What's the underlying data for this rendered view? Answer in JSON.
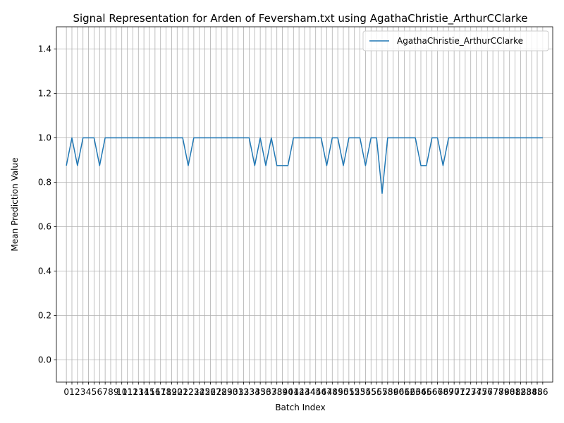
{
  "chart_data": {
    "type": "line",
    "title": "Signal Representation for Arden of Feversham.txt using AgathaChristie_ArthurCClarke",
    "xlabel": "Batch Index",
    "ylabel": "Mean Prediction Value",
    "ylim": [
      -0.1,
      1.5
    ],
    "xlim": [
      -1.8,
      87.8
    ],
    "yticks": [
      0.0,
      0.2,
      0.4,
      0.6,
      0.8,
      1.0,
      1.2,
      1.4
    ],
    "ytick_labels": [
      "0.0",
      "0.2",
      "0.4",
      "0.6",
      "0.8",
      "1.0",
      "1.2",
      "1.4"
    ],
    "grid": true,
    "legend_position": "top-right",
    "series": [
      {
        "name": "AgathaChristie_ArthurCClarke",
        "color": "#1f77b4",
        "x": [
          0,
          1,
          2,
          3,
          4,
          5,
          6,
          7,
          8,
          9,
          10,
          11,
          12,
          13,
          14,
          15,
          16,
          17,
          18,
          19,
          20,
          21,
          22,
          23,
          24,
          25,
          26,
          27,
          28,
          29,
          30,
          31,
          32,
          33,
          34,
          35,
          36,
          37,
          38,
          39,
          40,
          41,
          42,
          43,
          44,
          45,
          46,
          47,
          48,
          49,
          50,
          51,
          52,
          53,
          54,
          55,
          56,
          57,
          58,
          59,
          60,
          61,
          62,
          63,
          64,
          65,
          66,
          67,
          68,
          69,
          70,
          71,
          72,
          73,
          74,
          75,
          76,
          77,
          78,
          79,
          80,
          81,
          82,
          83,
          84,
          85,
          86
        ],
        "values": [
          0.875,
          1.0,
          0.875,
          1.0,
          1.0,
          1.0,
          0.875,
          1.0,
          1.0,
          1.0,
          1.0,
          1.0,
          1.0,
          1.0,
          1.0,
          1.0,
          1.0,
          1.0,
          1.0,
          1.0,
          1.0,
          1.0,
          0.875,
          1.0,
          1.0,
          1.0,
          1.0,
          1.0,
          1.0,
          1.0,
          1.0,
          1.0,
          1.0,
          1.0,
          0.875,
          1.0,
          0.875,
          1.0,
          0.875,
          0.875,
          0.875,
          1.0,
          1.0,
          1.0,
          1.0,
          1.0,
          1.0,
          0.875,
          1.0,
          1.0,
          0.875,
          1.0,
          1.0,
          1.0,
          0.875,
          1.0,
          1.0,
          0.75,
          1.0,
          1.0,
          1.0,
          1.0,
          1.0,
          1.0,
          0.875,
          0.875,
          1.0,
          1.0,
          0.875,
          1.0,
          1.0,
          1.0,
          1.0,
          1.0,
          1.0,
          1.0,
          1.0,
          1.0,
          1.0,
          1.0,
          1.0,
          1.0,
          1.0,
          1.0,
          1.0,
          1.0,
          1.0
        ]
      }
    ],
    "xtick_labels": [
      "0",
      "1",
      "2",
      "3",
      "4",
      "5",
      "6",
      "7",
      "8",
      "9",
      "10",
      "11",
      "12",
      "13",
      "14",
      "15",
      "16",
      "17",
      "18",
      "19",
      "20",
      "21",
      "22",
      "23",
      "24",
      "25",
      "26",
      "27",
      "28",
      "29",
      "30",
      "31",
      "32",
      "33",
      "34",
      "35",
      "36",
      "37",
      "38",
      "39",
      "40",
      "41",
      "42",
      "43",
      "44",
      "45",
      "46",
      "47",
      "48",
      "49",
      "50",
      "51",
      "52",
      "53",
      "54",
      "55",
      "56",
      "57",
      "58",
      "59",
      "60",
      "61",
      "62",
      "63",
      "64",
      "65",
      "66",
      "67",
      "68",
      "69",
      "70",
      "71",
      "72",
      "73",
      "74",
      "75",
      "76",
      "77",
      "78",
      "79",
      "80",
      "81",
      "82",
      "83",
      "84",
      "85",
      "86"
    ]
  }
}
